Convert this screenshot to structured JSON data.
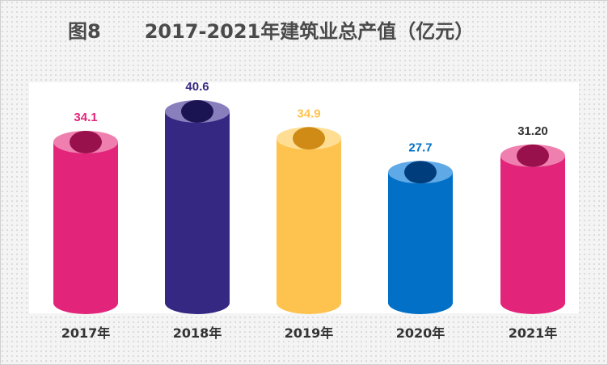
{
  "title": {
    "figure_no": "图8",
    "text": "2017-2021年建筑业总产值（亿元）"
  },
  "colors": {
    "2017": "#e2247a",
    "2018": "#352882",
    "2019": "#fec34e",
    "2020": "#0170c6",
    "2021": "#e2247a"
  },
  "chart_data": {
    "type": "bar",
    "style": "3d-cylinder",
    "categories": [
      "2017年",
      "2018年",
      "2019年",
      "2020年",
      "2021年"
    ],
    "values": [
      34.1,
      40.6,
      34.9,
      27.7,
      31.2
    ],
    "value_labels": [
      "34.1",
      "40.6",
      "34.9",
      "27.7",
      "31.20"
    ],
    "value_label_colors": [
      "#e2247a",
      "#352882",
      "#fec34e",
      "#0170c6",
      "#333333"
    ],
    "series": [
      {
        "values": [
          34.1,
          40.6,
          34.9,
          27.7,
          31.2
        ],
        "colors": [
          "#e2247a",
          "#352882",
          "#fec34e",
          "#0170c6",
          "#e2247a"
        ],
        "rim_colors": [
          "#ef7fae",
          "#8a7fbd",
          "#ffde93",
          "#5fa9e6",
          "#ef7fae"
        ],
        "hole_colors": [
          "#99114c",
          "#1b1452",
          "#cf8b15",
          "#003d7d",
          "#99114c"
        ]
      }
    ],
    "ylim": [
      0,
      45
    ],
    "grid": false,
    "legend": "none"
  }
}
